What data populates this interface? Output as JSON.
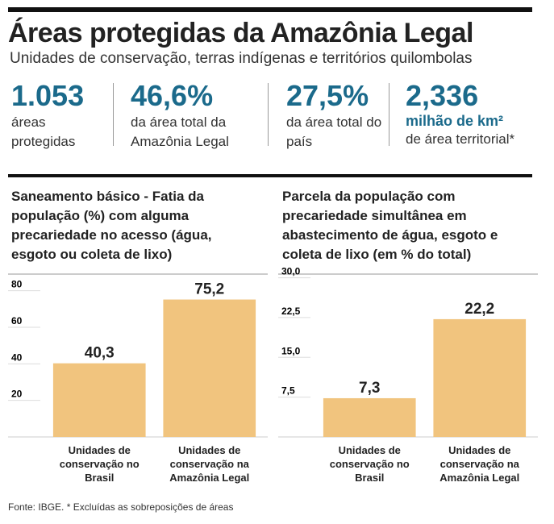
{
  "header": {
    "title": "Áreas protegidas da Amazônia Legal",
    "subtitle": "Unidades de conservação, terras indígenas e territórios quilombolas"
  },
  "stats": [
    {
      "value": "1.053",
      "label": "áreas protegidas"
    },
    {
      "value": "46,6%",
      "label": "da área total da Amazônia Legal"
    },
    {
      "value": "27,5%",
      "label": "da área total do país"
    },
    {
      "value": "2,336",
      "unit": "milhão de km²",
      "label": "de área territorial*"
    }
  ],
  "chart_data": [
    {
      "type": "bar",
      "title": "Saneamento básico - Fatia da população (%) com alguma precariedade no acesso (água, esgoto ou coleta de lixo)",
      "categories": [
        "Unidades de conservação no Brasil",
        "Unidades de conservação na Amazônia Legal"
      ],
      "values": [
        40.3,
        75.2
      ],
      "value_labels": [
        "40,3",
        "75,2"
      ],
      "color": "#f1c47e",
      "ylim": [
        0,
        90
      ],
      "yticks": [
        20,
        40,
        60,
        80
      ],
      "grid": true
    },
    {
      "type": "bar",
      "title": "Parcela da população com precariedade simultânea em abastecimento de água, esgoto e coleta de lixo (em % do total)",
      "categories": [
        "Unidades de conservação no Brasil",
        "Unidades de conservação na Amazônia Legal"
      ],
      "values": [
        7.3,
        22.2
      ],
      "value_labels": [
        "7,3",
        "22,2"
      ],
      "color": "#f1c47e",
      "ylim": [
        0,
        31
      ],
      "yticks": [
        {
          "value": 7.5,
          "label": "7,5"
        },
        {
          "value": 15,
          "label": "15,0"
        },
        {
          "value": 22.5,
          "label": "22,5"
        },
        {
          "value": 30,
          "label": "30,0"
        }
      ],
      "grid": true
    }
  ],
  "footer": "Fonte: IBGE. * Excluídas as sobreposições de áreas"
}
